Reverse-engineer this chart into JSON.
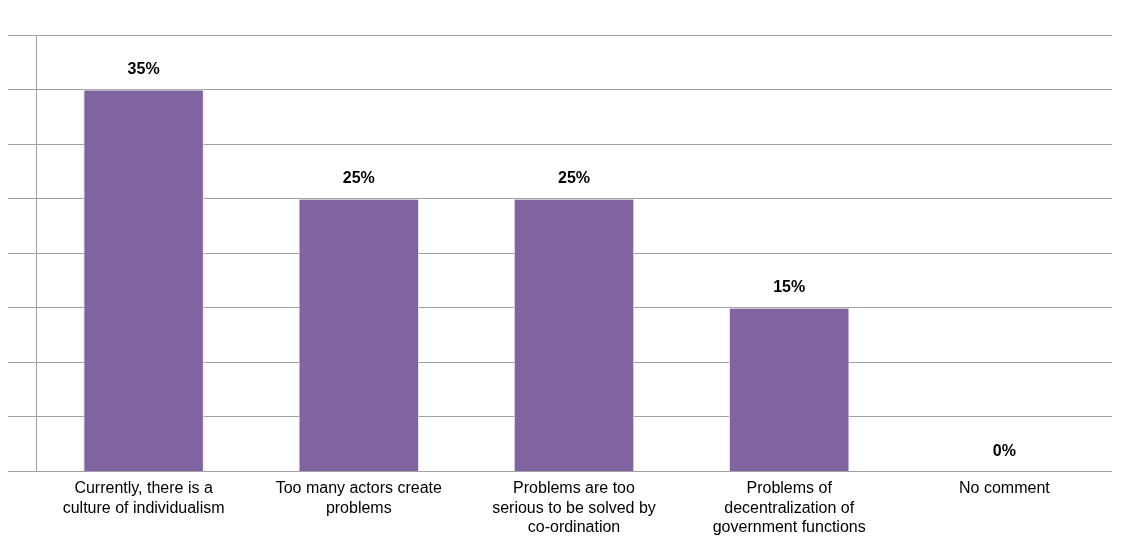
{
  "chart_data": {
    "type": "bar",
    "categories": [
      "Currently, there is a culture of individualism",
      "Too many actors create problems",
      "Problems are too serious to be solved by co-ordination",
      "Problems of decentralization of government functions",
      "No comment"
    ],
    "values": [
      35,
      25,
      25,
      15,
      0
    ],
    "color": "#8064a2",
    "value_labels": [
      "35%",
      "25%",
      "25%",
      "15%",
      "0%"
    ],
    "ylim": [
      0,
      40
    ],
    "yticks": [
      {
        "value": 0,
        "label": null
      },
      {
        "value": 5,
        "label": null
      },
      {
        "value": 10,
        "label": null
      },
      {
        "value": 15,
        "label": null
      },
      {
        "value": 20,
        "label": null
      },
      {
        "value": 25,
        "label": null
      },
      {
        "value": 30,
        "label": null
      },
      {
        "value": 35,
        "label": null
      },
      {
        "value": 40,
        "label": null
      }
    ],
    "grid": "y",
    "tick_labels": "x",
    "legend": false
  }
}
